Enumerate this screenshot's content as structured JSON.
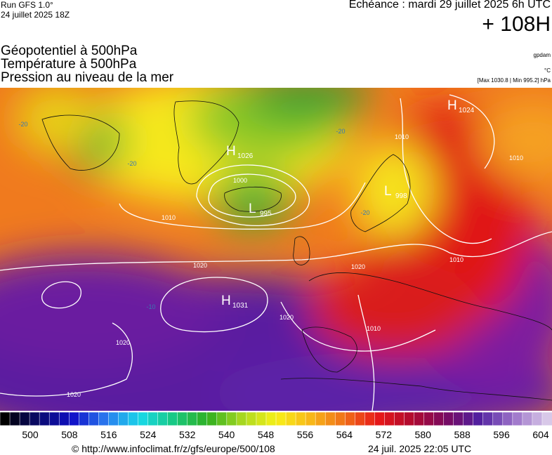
{
  "header": {
    "run": "Run GFS 1.0°",
    "run_date": "24 juillet 2025 18Z",
    "valid": "Echéance : mardi 29 juillet 2025 6h UTC",
    "lead": "+ 108H"
  },
  "layers": [
    "Géopotentiel à 500hPa",
    "Température à 500hPa",
    "Pression au niveau de la mer"
  ],
  "units": {
    "geopotential": "gpdam",
    "temperature": "°C",
    "pressure": "[Max 1030.8 | Min 995.2] hPa"
  },
  "centers": [
    {
      "type": "H",
      "value": 1026
    },
    {
      "type": "L",
      "value": 995
    },
    {
      "type": "L",
      "value": 998
    },
    {
      "type": "H",
      "value": 1031
    },
    {
      "type": "H",
      "value": 1024
    }
  ],
  "isobar_labels": [
    1000,
    1010,
    1020,
    1020,
    1010,
    1010,
    1020,
    1020,
    1010,
    1010,
    1020
  ],
  "temperature_labels": [
    -20,
    -20,
    -20,
    -20,
    -10
  ],
  "colorbar": {
    "ticks": [
      500,
      508,
      516,
      524,
      532,
      540,
      548,
      556,
      564,
      572,
      580,
      588,
      596,
      604
    ]
  },
  "footer": {
    "source": "© http://www.infoclimat.fr/z/gfs/europe/500/108",
    "timestamp": "24 juil. 2025 22:05 UTC"
  }
}
